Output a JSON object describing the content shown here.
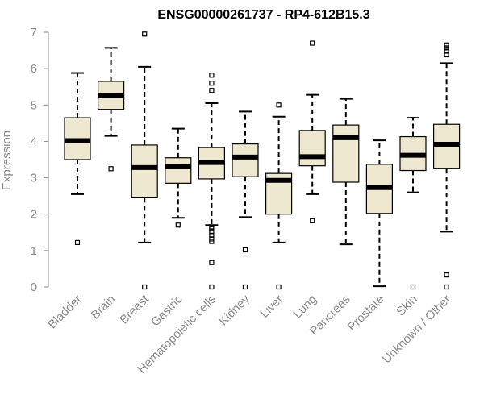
{
  "chart_data": {
    "type": "boxplot",
    "title": "ENSG00000261737 - RP4-612B15.3",
    "xlabel": "",
    "ylabel": "Expression",
    "ylim": [
      0,
      7
    ],
    "yticks": [
      0,
      1,
      2,
      3,
      4,
      5,
      6,
      7
    ],
    "box_fill": "#efe8d0",
    "categories": [
      "Bladder",
      "Brain",
      "Breast",
      "Gastric",
      "Hematopoietic cells",
      "Kidney",
      "Liver",
      "Lung",
      "Pancreas",
      "Prostate",
      "Skin",
      "Unknown / Other"
    ],
    "boxes": [
      {
        "name": "Bladder",
        "whisker_low": 2.55,
        "q1": 3.5,
        "median": 4.02,
        "q3": 4.65,
        "whisker_high": 5.88,
        "outliers": [
          1.22
        ]
      },
      {
        "name": "Brain",
        "whisker_low": 4.15,
        "q1": 4.88,
        "median": 5.25,
        "q3": 5.65,
        "whisker_high": 6.57,
        "outliers": [
          3.25
        ]
      },
      {
        "name": "Breast",
        "whisker_low": 1.22,
        "q1": 2.45,
        "median": 3.28,
        "q3": 3.9,
        "whisker_high": 6.05,
        "outliers": [
          0,
          6.95
        ]
      },
      {
        "name": "Gastric",
        "whisker_low": 1.9,
        "q1": 2.85,
        "median": 3.3,
        "q3": 3.55,
        "whisker_high": 4.35,
        "outliers": [
          1.7
        ]
      },
      {
        "name": "Hematopoietic cells",
        "whisker_low": 1.7,
        "q1": 2.97,
        "median": 3.42,
        "q3": 3.83,
        "whisker_high": 5.05,
        "outliers": [
          0,
          0.67,
          1.25,
          1.32,
          1.42,
          1.52,
          1.6,
          1.65,
          5.4,
          5.6,
          5.82
        ]
      },
      {
        "name": "Kidney",
        "whisker_low": 1.92,
        "q1": 3.03,
        "median": 3.57,
        "q3": 3.93,
        "whisker_high": 4.82,
        "outliers": [
          0,
          1.02
        ]
      },
      {
        "name": "Liver",
        "whisker_low": 1.22,
        "q1": 2.0,
        "median": 2.93,
        "q3": 3.12,
        "whisker_high": 4.68,
        "outliers": [
          0,
          5.0
        ]
      },
      {
        "name": "Lung",
        "whisker_low": 2.55,
        "q1": 3.33,
        "median": 3.58,
        "q3": 4.3,
        "whisker_high": 5.28,
        "outliers": [
          1.82,
          6.7
        ]
      },
      {
        "name": "Pancreas",
        "whisker_low": 1.17,
        "q1": 2.88,
        "median": 4.1,
        "q3": 4.45,
        "whisker_high": 5.17,
        "outliers": []
      },
      {
        "name": "Prostate",
        "whisker_low": 0.02,
        "q1": 2.02,
        "median": 2.73,
        "q3": 3.37,
        "whisker_high": 4.03,
        "outliers": []
      },
      {
        "name": "Skin",
        "whisker_low": 2.6,
        "q1": 3.2,
        "median": 3.62,
        "q3": 4.13,
        "whisker_high": 4.65,
        "outliers": [
          0
        ]
      },
      {
        "name": "Unknown / Other",
        "whisker_low": 1.52,
        "q1": 3.25,
        "median": 3.92,
        "q3": 4.47,
        "whisker_high": 6.15,
        "outliers": [
          0,
          0.33,
          6.38,
          6.48,
          6.57,
          6.65
        ]
      }
    ]
  }
}
